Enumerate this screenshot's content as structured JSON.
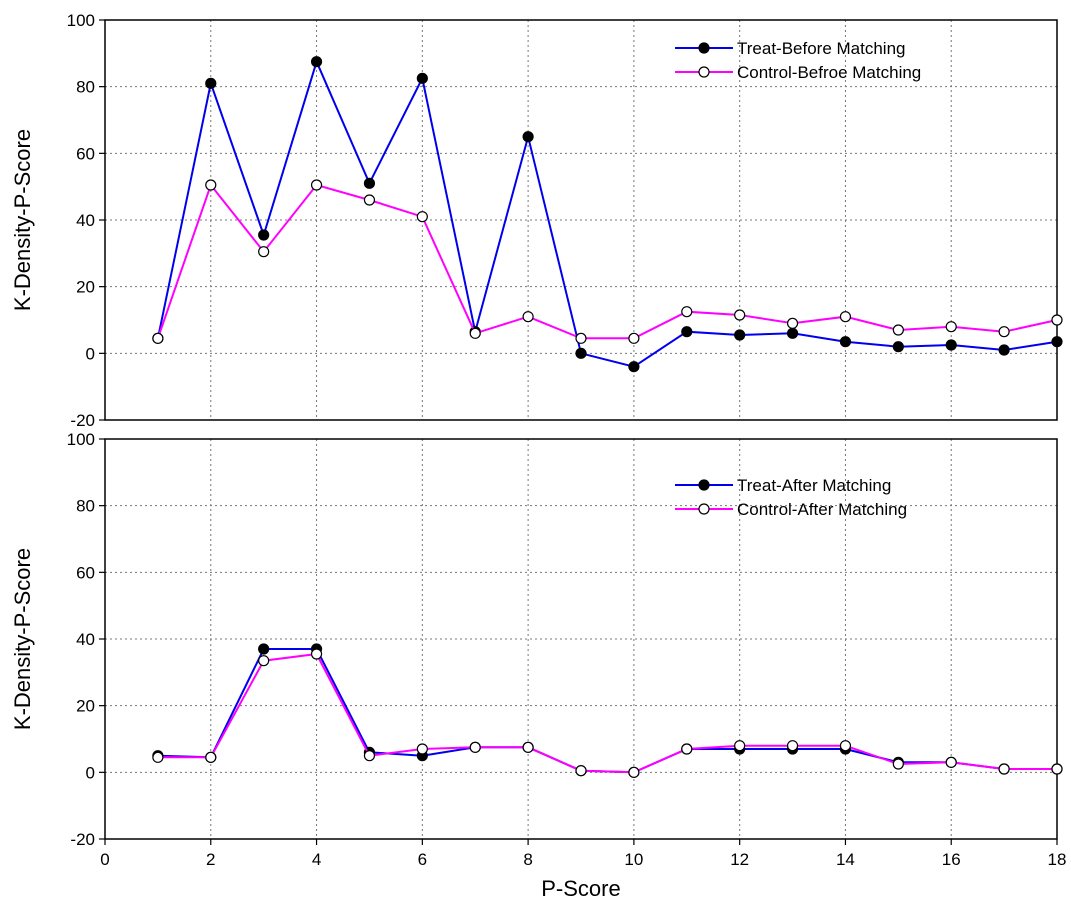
{
  "chart_data": {
    "type": "line",
    "xlabel": "P-Score",
    "xlim": [
      0,
      18
    ],
    "xticks": [
      "0",
      "2",
      "4",
      "6",
      "8",
      "10",
      "12",
      "14",
      "16",
      "18"
    ],
    "colors": {
      "treat": "#0000ee",
      "control": "#ff00ff"
    },
    "panels": [
      {
        "ylabel": "K-Density-P-Score",
        "ylim": [
          -20,
          100
        ],
        "yticks": [
          "-20",
          "0",
          "20",
          "40",
          "60",
          "80",
          "100"
        ],
        "grid": true,
        "legend": "top-right",
        "series": [
          {
            "name": "Treat-Before Matching",
            "marker": "filled-circle",
            "x": [
              1,
              2,
              3,
              4,
              5,
              6,
              7,
              8,
              9,
              10,
              11,
              12,
              13,
              14,
              15,
              16,
              17,
              18
            ],
            "values": [
              4.5,
              81,
              35.5,
              87.5,
              51,
              82.5,
              6.5,
              65,
              0,
              -4,
              6.5,
              5.5,
              6,
              3.5,
              2,
              2.5,
              1,
              3.5
            ]
          },
          {
            "name": "Control-Befroe Matching",
            "marker": "open-circle",
            "x": [
              1,
              2,
              3,
              4,
              5,
              6,
              7,
              8,
              9,
              10,
              11,
              12,
              13,
              14,
              15,
              16,
              17,
              18
            ],
            "values": [
              4.5,
              50.5,
              30.5,
              50.5,
              46,
              41,
              6,
              11,
              4.5,
              4.5,
              12.5,
              11.5,
              9,
              11,
              7,
              8,
              6.5,
              10
            ]
          }
        ]
      },
      {
        "ylabel": "K-Density-P-Score",
        "ylim": [
          -20,
          100
        ],
        "yticks": [
          "-20",
          "0",
          "20",
          "40",
          "60",
          "80",
          "100"
        ],
        "grid": true,
        "legend": "top-right",
        "series": [
          {
            "name": "Treat-After Matching",
            "marker": "filled-circle",
            "x": [
              1,
              2,
              3,
              4,
              5,
              6,
              7,
              8,
              9,
              10,
              11,
              12,
              13,
              14,
              15,
              16,
              17,
              18
            ],
            "values": [
              5,
              4.5,
              37,
              37,
              6,
              5,
              7.5,
              7.5,
              0.5,
              0,
              7,
              7,
              7,
              7,
              3,
              3,
              1,
              1
            ]
          },
          {
            "name": "Control-After Matching",
            "marker": "open-circle",
            "x": [
              1,
              2,
              3,
              4,
              5,
              6,
              7,
              8,
              9,
              10,
              11,
              12,
              13,
              14,
              15,
              16,
              17,
              18
            ],
            "values": [
              4.5,
              4.5,
              33.5,
              35.5,
              5,
              7,
              7.5,
              7.5,
              0.5,
              0,
              7,
              8,
              8,
              8,
              2.5,
              3,
              1,
              1
            ]
          }
        ]
      }
    ]
  }
}
